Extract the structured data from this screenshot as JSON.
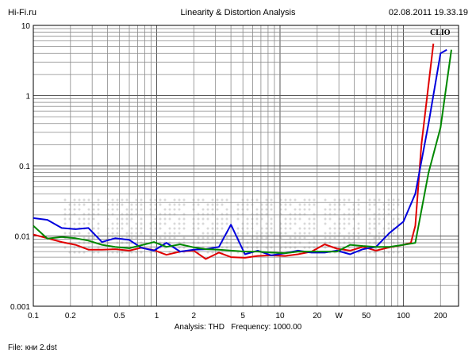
{
  "header": {
    "left": "Hi-Fi.ru",
    "center": "Linearity & Distortion Analysis",
    "right": "02.08.2011 19.33.19"
  },
  "brand": "CLIO",
  "footer": {
    "analysis_label": "Analysis:",
    "analysis_value": "THD",
    "frequency_label": "Frequency:",
    "frequency_value": "1000.00",
    "file_label": "File:",
    "file_value": "кни 2.dst"
  },
  "chart_data": {
    "type": "line",
    "title": "Linearity & Distortion Analysis",
    "x_scale": "log",
    "y_scale": "log",
    "xlim": [
      0.1,
      280
    ],
    "ylim": [
      0.001,
      10
    ],
    "x_ticks": [
      {
        "value": 0.1,
        "label": "0.1"
      },
      {
        "value": 0.2,
        "label": "0.2"
      },
      {
        "value": 0.5,
        "label": "0.5"
      },
      {
        "value": 1,
        "label": "1"
      },
      {
        "value": 2,
        "label": "2"
      },
      {
        "value": 5,
        "label": "5"
      },
      {
        "value": 10,
        "label": "10"
      },
      {
        "value": 20,
        "label": "20"
      },
      {
        "value": 30,
        "label": "W"
      },
      {
        "value": 50,
        "label": "50"
      },
      {
        "value": 100,
        "label": "100"
      },
      {
        "value": 200,
        "label": "200"
      }
    ],
    "y_ticks": [
      {
        "value": 10,
        "label": "10"
      },
      {
        "value": 1,
        "label": "1"
      },
      {
        "value": 0.1,
        "label": "0.1"
      },
      {
        "value": 0.01,
        "label": "0.01"
      },
      {
        "value": 0.001,
        "label": "0.001"
      }
    ],
    "grid": true,
    "series": [
      {
        "color": "#e00000",
        "x": [
          0.1,
          0.13,
          0.17,
          0.22,
          0.28,
          0.36,
          0.46,
          0.6,
          0.75,
          0.95,
          1.2,
          1.55,
          2,
          2.5,
          3.2,
          4,
          5.2,
          6.6,
          8.5,
          11,
          14,
          18,
          23,
          29,
          37,
          47,
          60,
          77,
          100,
          115,
          125,
          140,
          175
        ],
        "y": [
          0.0105,
          0.0093,
          0.0082,
          0.0075,
          0.0064,
          0.0064,
          0.0065,
          0.0062,
          0.0068,
          0.0063,
          0.0054,
          0.006,
          0.0062,
          0.0047,
          0.0058,
          0.005,
          0.0049,
          0.0052,
          0.0053,
          0.0052,
          0.0055,
          0.006,
          0.0076,
          0.0066,
          0.0062,
          0.007,
          0.0062,
          0.0069,
          0.0075,
          0.008,
          0.014,
          0.2,
          5.5
        ]
      },
      {
        "color": "#0000dd",
        "x": [
          0.1,
          0.13,
          0.17,
          0.22,
          0.28,
          0.36,
          0.46,
          0.6,
          0.75,
          0.95,
          1.2,
          1.55,
          2,
          2.5,
          3.2,
          4,
          5.2,
          6.6,
          8.5,
          11,
          14,
          18,
          23,
          29,
          37,
          47,
          60,
          77,
          100,
          125,
          160,
          200,
          225
        ],
        "y": [
          0.018,
          0.017,
          0.013,
          0.0125,
          0.013,
          0.0082,
          0.0093,
          0.0088,
          0.0068,
          0.0062,
          0.008,
          0.006,
          0.0064,
          0.0065,
          0.007,
          0.0145,
          0.0055,
          0.0062,
          0.0053,
          0.0057,
          0.0062,
          0.0058,
          0.0058,
          0.0062,
          0.0055,
          0.0065,
          0.007,
          0.011,
          0.016,
          0.04,
          0.4,
          4.0,
          4.5
        ]
      },
      {
        "color": "#008800",
        "x": [
          0.1,
          0.13,
          0.17,
          0.22,
          0.28,
          0.36,
          0.46,
          0.6,
          0.75,
          0.95,
          1.2,
          1.55,
          2,
          2.5,
          3.2,
          4,
          5.2,
          6.6,
          8.5,
          11,
          14,
          18,
          23,
          29,
          37,
          47,
          60,
          77,
          100,
          125,
          160,
          200,
          245
        ],
        "y": [
          0.014,
          0.0092,
          0.0097,
          0.0093,
          0.0086,
          0.0075,
          0.007,
          0.0067,
          0.0074,
          0.0082,
          0.007,
          0.0076,
          0.0069,
          0.0065,
          0.0064,
          0.0062,
          0.006,
          0.006,
          0.0058,
          0.0057,
          0.006,
          0.006,
          0.006,
          0.006,
          0.0075,
          0.0072,
          0.007,
          0.007,
          0.0075,
          0.008,
          0.08,
          0.35,
          4.5
        ]
      }
    ]
  }
}
